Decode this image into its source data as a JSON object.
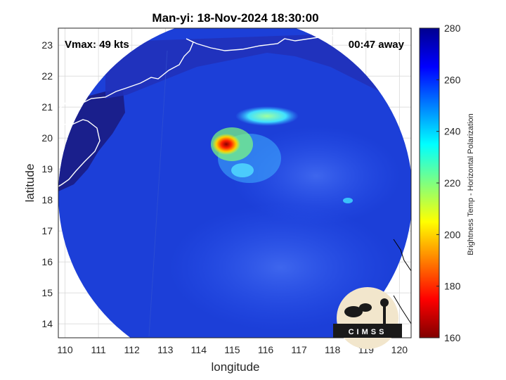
{
  "chart_data": {
    "type": "heatmap",
    "title": "Man-yi: 18-Nov-2024 18:30:00",
    "xlabel": "longitude",
    "ylabel": "latitude",
    "xlim": [
      109.8,
      120.35
    ],
    "ylim": [
      13.55,
      23.55
    ],
    "xticks": [
      110,
      111,
      112,
      113,
      114,
      115,
      116,
      117,
      118,
      119,
      120
    ],
    "yticks": [
      14,
      15,
      16,
      17,
      18,
      19,
      20,
      21,
      22,
      23
    ],
    "grid": true,
    "annotations": {
      "left": "Vmax: 49 kts",
      "right": "00:47 away"
    },
    "colorbar": {
      "label": "Brightness Temp - Horizontal Polarization",
      "range": [
        160,
        280
      ],
      "ticks": [
        160,
        180,
        200,
        220,
        240,
        260,
        280
      ],
      "colormap": "jet"
    },
    "swath": {
      "center_lon": 115.1,
      "center_lat": 18.2,
      "radius_deg_lon": 5.3
    },
    "storm_center": {
      "lon": 115.0,
      "lat": 18.9
    },
    "features": [
      {
        "name": "core",
        "lon": 114.85,
        "lat": 19.8,
        "value": 178
      },
      {
        "name": "inner-band",
        "lon": 115.0,
        "lat": 19.75,
        "value": 205
      },
      {
        "name": "north-band",
        "lon": 115.6,
        "lat": 20.75,
        "value": 238
      },
      {
        "name": "south-arc",
        "lon": 115.2,
        "lat": 19.0,
        "value": 240
      },
      {
        "name": "east-spot",
        "lon": 118.2,
        "lat": 17.75,
        "value": 240
      }
    ]
  },
  "colors": {
    "background_ocean": "#1c3fd8",
    "land": "#1a1f8c",
    "coastline": "#ffffff",
    "outside_coast": "#000000"
  },
  "logo": {
    "text": "CIMSS",
    "icon": "cimss-logo"
  }
}
